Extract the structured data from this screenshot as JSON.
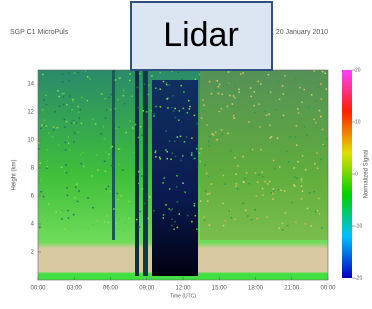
{
  "chart_data": {
    "type": "heatmap",
    "title_left": "SGP C1 MicroPuls",
    "title_right": ", 20 January 2010",
    "overlay_label": "Lidar",
    "xlabel": "Time (UTC)",
    "ylabel": "Height (km)",
    "colorbar_label": "Normalized Signal",
    "xlim": [
      0,
      24
    ],
    "xticks": [
      {
        "value": 0,
        "label": "00:00"
      },
      {
        "value": 3,
        "label": "03:00"
      },
      {
        "value": 6,
        "label": "06:00"
      },
      {
        "value": 9,
        "label": "09:00"
      },
      {
        "value": 12,
        "label": "12:00"
      },
      {
        "value": 15,
        "label": "15:00"
      },
      {
        "value": 18,
        "label": "18:00"
      },
      {
        "value": 21,
        "label": "21:00"
      },
      {
        "value": 24,
        "label": "00:00"
      }
    ],
    "ylim": [
      0,
      15
    ],
    "yticks": [
      2,
      4,
      6,
      8,
      10,
      12,
      14
    ],
    "clim": [
      -20,
      20
    ],
    "cticks": [
      -20,
      -10,
      0,
      10,
      20
    ]
  }
}
